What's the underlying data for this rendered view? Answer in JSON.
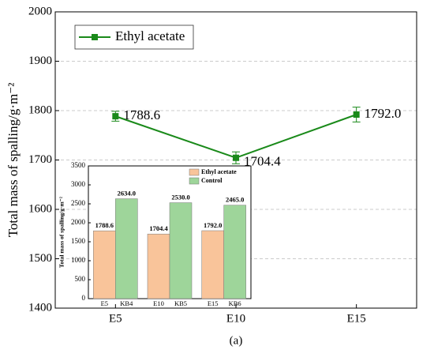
{
  "chart_data": [
    {
      "type": "line",
      "ylabel": "Total mass of spalling/g·m⁻²",
      "caption": "(a)",
      "categories": [
        "E5",
        "E10",
        "E15"
      ],
      "series": [
        {
          "name": "Ethyl acetate",
          "color": "#1a8a1a",
          "values": [
            1788.6,
            1704.4,
            1792.0
          ],
          "errors": [
            10,
            12,
            15
          ],
          "value_labels": [
            "1788.6",
            "1704.4",
            "1792.0"
          ]
        }
      ],
      "ylim": [
        1400,
        2000
      ],
      "yticks": [
        1400,
        1500,
        1600,
        1700,
        1800,
        1900,
        2000
      ],
      "grid": true,
      "legend": "upper left"
    },
    {
      "type": "bar",
      "ylabel": "Total mass of spalling/g·m⁻²",
      "series": [
        {
          "name": "Ethyl acetate",
          "color": "#f9c49a",
          "categories": [
            "E5",
            "E10",
            "E15"
          ],
          "values": [
            1788.6,
            1704.4,
            1792.0
          ],
          "value_labels": [
            "1788.6",
            "1704.4",
            "1792.0"
          ]
        },
        {
          "name": "Control",
          "color": "#9ed59a",
          "categories": [
            "KB4",
            "KB5",
            "KB6"
          ],
          "values": [
            2634.0,
            2530.0,
            2465.0
          ],
          "value_labels": [
            "2634.0",
            "2530.0",
            "2465.0"
          ]
        }
      ],
      "ylim": [
        0,
        3500
      ],
      "yticks": [
        0,
        500,
        1000,
        1500,
        2000,
        2500,
        3000,
        3500
      ],
      "legend": "upper right"
    }
  ]
}
